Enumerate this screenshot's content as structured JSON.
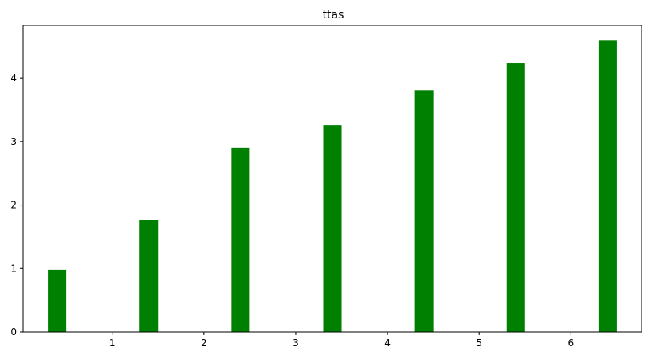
{
  "chart_data": {
    "type": "bar",
    "title": "ttas",
    "xlabel": "",
    "ylabel": "",
    "x": [
      0.4,
      1.4,
      2.4,
      3.4,
      4.4,
      5.4,
      6.4
    ],
    "values": [
      0.98,
      1.76,
      2.9,
      3.26,
      3.81,
      4.24,
      4.6
    ],
    "bar_width": 0.2,
    "xlim": [
      0.03,
      6.77
    ],
    "ylim": [
      0,
      4.83
    ],
    "xticks": [
      1,
      2,
      3,
      4,
      5,
      6
    ],
    "yticks": [
      0,
      1,
      2,
      3,
      4
    ],
    "bar_color": "#008000",
    "grid": false,
    "legend": "none"
  }
}
